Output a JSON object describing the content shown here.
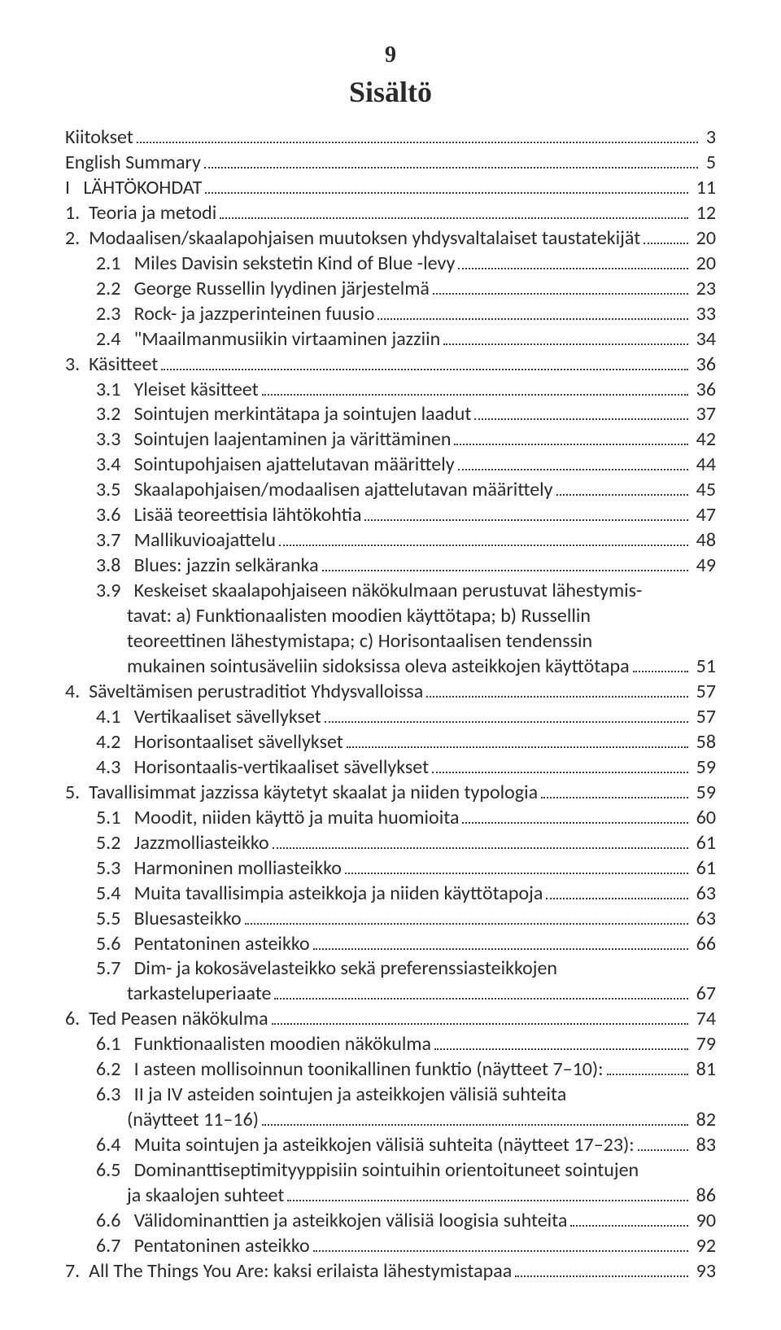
{
  "pageNumber": "9",
  "heading": "Sisältö",
  "entries": [
    {
      "level": 1,
      "label": "Kiitokset",
      "page": "3"
    },
    {
      "level": 1,
      "label": "English Summary",
      "page": "5"
    },
    {
      "level": 0,
      "label": "I   LÄHTÖKOHDAT",
      "page": "11"
    },
    {
      "level": 1,
      "label": "1.  Teoria ja metodi",
      "page": "12"
    },
    {
      "level": 1,
      "label": "2.  Modaalisen/skaalapohjaisen muutoksen yhdysvaltalaiset taustatekijät",
      "page": "20"
    },
    {
      "level": 2,
      "label": "2.1   Miles Davisin sekstetin Kind of Blue -levy",
      "page": "20"
    },
    {
      "level": 2,
      "label": "2.2   George Russellin lyydinen järjestelmä",
      "page": "23"
    },
    {
      "level": 2,
      "label": "2.3   Rock- ja jazzperinteinen fuusio",
      "page": "33"
    },
    {
      "level": 2,
      "label": "2.4   \"Maailmanmusiikin virtaaminen jazziin",
      "page": "34"
    },
    {
      "level": 1,
      "label": "3.  Käsitteet",
      "page": "36"
    },
    {
      "level": 2,
      "label": "3.1   Yleiset käsitteet",
      "page": "36"
    },
    {
      "level": 2,
      "label": "3.2   Sointujen merkintätapa ja sointujen laadut",
      "page": "37"
    },
    {
      "level": 2,
      "label": "3.3   Sointujen laajentaminen ja värittäminen",
      "page": "42"
    },
    {
      "level": 2,
      "label": "3.4   Sointupohjaisen ajattelutavan määrittely",
      "page": "44"
    },
    {
      "level": 2,
      "label": "3.5   Skaalapohjaisen/modaalisen ajattelutavan määrittely",
      "page": "45"
    },
    {
      "level": 2,
      "label": "3.6   Lisää teoreettisia lähtökohtia",
      "page": "47"
    },
    {
      "level": 2,
      "label": "3.7   Mallikuvioajattelu",
      "page": "48"
    },
    {
      "level": 2,
      "label": "3.8   Blues: jazzin selkäranka",
      "page": "49"
    },
    {
      "level": 2,
      "label": "3.9   Keskeiset skaalapohjaiseen näkökulmaan perustuvat lähestymis-",
      "continuation": [
        "tavat: a) Funktionaalisten moodien käyttötapa; b) Russellin",
        "teoreettinen lähestymistapa; c) Horisontaalisen tendenssin"
      ],
      "finalLine": "mukainen sointusäveliin sidoksissa oleva asteikkojen käyttötapa",
      "page": "51"
    },
    {
      "level": 1,
      "label": "4.  Säveltämisen perustraditiot Yhdysvalloissa",
      "page": "57"
    },
    {
      "level": 2,
      "label": "4.1   Vertikaaliset sävellykset",
      "page": "57"
    },
    {
      "level": 2,
      "label": "4.2   Horisontaaliset sävellykset",
      "page": "58"
    },
    {
      "level": 2,
      "label": "4.3   Horisontaalis-vertikaaliset sävellykset",
      "page": "59"
    },
    {
      "level": 1,
      "label": "5.  Tavallisimmat jazzissa käytetyt skaalat ja niiden typologia",
      "page": "59"
    },
    {
      "level": 2,
      "label": "5.1   Moodit, niiden käyttö ja muita huomioita",
      "page": "60"
    },
    {
      "level": 2,
      "label": "5.2   Jazzmolliasteikko",
      "page": "61"
    },
    {
      "level": 2,
      "label": "5.3   Harmoninen molliasteikko",
      "page": "61"
    },
    {
      "level": 2,
      "label": "5.4   Muita tavallisimpia asteikkoja ja niiden käyttötapoja",
      "page": "63"
    },
    {
      "level": 2,
      "label": "5.5   Bluesasteikko",
      "page": "63"
    },
    {
      "level": 2,
      "label": "5.6   Pentatoninen asteikko",
      "page": "66"
    },
    {
      "level": 2,
      "label": "5.7   Dim- ja kokosävelasteikko sekä preferenssiasteikkojen",
      "continuation": [],
      "finalLine": "tarkasteluperiaate",
      "page": "67"
    },
    {
      "level": 1,
      "label": "6.  Ted Peasen näkökulma",
      "page": "74"
    },
    {
      "level": 2,
      "label": "6.1   Funktionaalisten moodien näkökulma",
      "page": "79"
    },
    {
      "level": 2,
      "label": "6.2   I asteen mollisoinnun toonikallinen funktio (näytteet 7–10):",
      "page": "81"
    },
    {
      "level": 2,
      "label": "6.3   II ja IV asteiden sointujen ja asteikkojen välisiä suhteita",
      "continuation": [],
      "finalLine": "(näytteet 11–16)",
      "page": "82"
    },
    {
      "level": 2,
      "label": "6.4   Muita sointujen ja asteikkojen välisiä suhteita (näytteet 17–23):",
      "page": "83"
    },
    {
      "level": 2,
      "label": "6.5   Dominanttiseptimityyppisiin sointuihin orientoituneet sointujen",
      "continuation": [],
      "finalLine": "ja skaalojen suhteet",
      "page": "86"
    },
    {
      "level": 2,
      "label": "6.6   Välidominanttien ja asteikkojen välisiä loogisia suhteita",
      "page": "90"
    },
    {
      "level": 2,
      "label": "6.7   Pentatoninen asteikko",
      "page": "92"
    },
    {
      "level": 1,
      "label": "7.  All The Things You Are: kaksi erilaista lähestymistapaa",
      "page": "93"
    }
  ]
}
